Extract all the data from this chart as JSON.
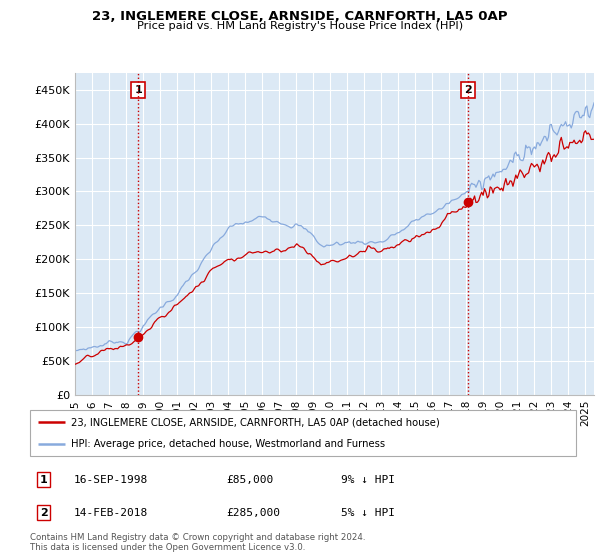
{
  "title": "23, INGLEMERE CLOSE, ARNSIDE, CARNFORTH, LA5 0AP",
  "subtitle": "Price paid vs. HM Land Registry's House Price Index (HPI)",
  "ylabel_ticks": [
    "£0",
    "£50K",
    "£100K",
    "£150K",
    "£200K",
    "£250K",
    "£300K",
    "£350K",
    "£400K",
    "£450K"
  ],
  "ytick_values": [
    0,
    50000,
    100000,
    150000,
    200000,
    250000,
    300000,
    350000,
    400000,
    450000
  ],
  "ylim": [
    0,
    475000
  ],
  "xlim_start": 1995.0,
  "xlim_end": 2025.5,
  "background_color": "#dce9f5",
  "grid_color": "#ffffff",
  "purchase1": {
    "date": "16-SEP-1998",
    "price": 85000,
    "year": 1998.71,
    "label": "1",
    "hpi_diff": "9% ↓ HPI"
  },
  "purchase2": {
    "date": "14-FEB-2018",
    "price": 285000,
    "year": 2018.12,
    "label": "2",
    "hpi_diff": "5% ↓ HPI"
  },
  "vline_color": "#cc0000",
  "vline_style": ":",
  "dot_color": "#cc0000",
  "line1_color": "#cc0000",
  "line2_color": "#88aadd",
  "legend_label1": "23, INGLEMERE CLOSE, ARNSIDE, CARNFORTH, LA5 0AP (detached house)",
  "legend_label2": "HPI: Average price, detached house, Westmorland and Furness",
  "footer1": "Contains HM Land Registry data © Crown copyright and database right 2024.",
  "footer2": "This data is licensed under the Open Government Licence v3.0.",
  "xtick_years": [
    1995,
    1996,
    1997,
    1998,
    1999,
    2000,
    2001,
    2002,
    2003,
    2004,
    2005,
    2006,
    2007,
    2008,
    2009,
    2010,
    2011,
    2012,
    2013,
    2014,
    2015,
    2016,
    2017,
    2018,
    2019,
    2020,
    2021,
    2022,
    2023,
    2024,
    2025
  ]
}
